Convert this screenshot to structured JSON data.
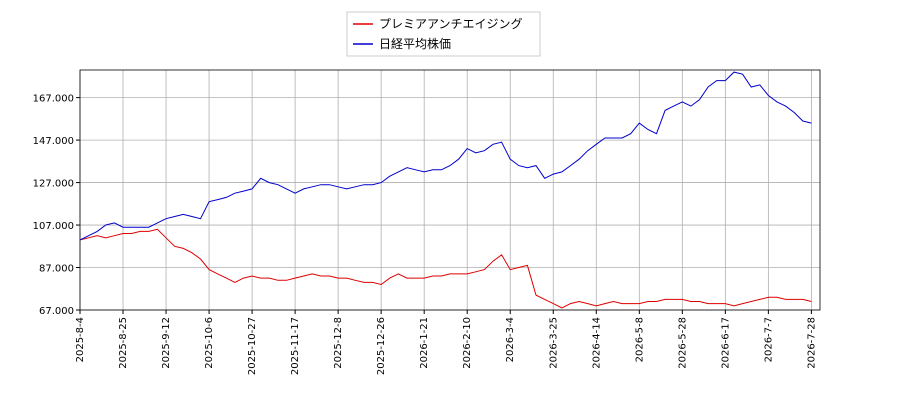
{
  "chart_data": {
    "type": "line",
    "categories": [
      "2025-8-4",
      null,
      null,
      null,
      null,
      "2025-8-25",
      null,
      null,
      null,
      null,
      "2025-9-12",
      null,
      null,
      null,
      null,
      "2025-10-6",
      null,
      null,
      null,
      null,
      "2025-10-27",
      null,
      null,
      null,
      null,
      "2025-11-17",
      null,
      null,
      null,
      null,
      "2025-12-8",
      null,
      null,
      null,
      null,
      "2025-12-26",
      null,
      null,
      null,
      null,
      "2026-1-21",
      null,
      null,
      null,
      null,
      "2026-2-10",
      null,
      null,
      null,
      null,
      "2026-3-4",
      null,
      null,
      null,
      null,
      "2026-3-25",
      null,
      null,
      null,
      null,
      "2026-4-14",
      null,
      null,
      null,
      null,
      "2026-5-8",
      null,
      null,
      null,
      null,
      "2026-5-28",
      null,
      null,
      null,
      null,
      "2026-6-17",
      null,
      null,
      null,
      null,
      "2026-7-7",
      null,
      null,
      null,
      null,
      "2026-7-28"
    ],
    "series": [
      {
        "name": "プレミアアンチエイジング",
        "color": "#dd0000",
        "values": [
          100,
          101,
          102,
          101,
          102,
          103,
          103,
          104,
          104,
          105,
          101,
          97,
          96,
          94,
          91,
          86,
          84,
          82,
          80,
          82,
          83,
          82,
          82,
          81,
          81,
          82,
          83,
          84,
          83,
          83,
          82,
          82,
          81,
          80,
          80,
          79,
          82,
          84,
          82,
          82,
          82,
          83,
          83,
          84,
          84,
          84,
          85,
          86,
          90,
          93,
          86,
          87,
          88,
          74,
          72,
          70,
          68,
          70,
          71,
          70,
          69,
          70,
          71,
          70,
          70,
          70,
          71,
          71,
          72,
          72,
          72,
          71,
          71,
          70,
          70,
          70,
          69,
          70,
          71,
          72,
          73,
          73,
          72,
          72,
          72,
          71
        ]
      },
      {
        "name": "日経平均株価",
        "color": "#0000cc",
        "values": [
          100,
          102,
          104,
          107,
          108,
          106,
          106,
          106,
          106,
          108,
          110,
          111,
          112,
          111,
          110,
          118,
          119,
          120,
          122,
          123,
          124,
          129,
          127,
          126,
          124,
          122,
          124,
          125,
          126,
          126,
          125,
          124,
          125,
          126,
          126,
          127,
          130,
          132,
          134,
          133,
          132,
          133,
          133,
          135,
          138,
          143,
          141,
          142,
          145,
          146,
          138,
          135,
          134,
          135,
          129,
          131,
          132,
          135,
          138,
          142,
          145,
          148,
          148,
          148,
          150,
          155,
          152,
          150,
          161,
          163,
          165,
          163,
          166,
          172,
          175,
          175,
          179,
          178,
          172,
          173,
          168,
          165,
          163,
          160,
          156,
          155
        ]
      }
    ],
    "ylim": [
      67,
      180
    ],
    "yticks": [
      {
        "value": 67,
        "label": "67.000"
      },
      {
        "value": 87,
        "label": "87.000"
      },
      {
        "value": 107,
        "label": "107.000"
      },
      {
        "value": 127,
        "label": "127.000"
      },
      {
        "value": 147,
        "label": "147.000"
      },
      {
        "value": 167,
        "label": "167.000"
      }
    ],
    "grid": true,
    "legend": "top"
  }
}
